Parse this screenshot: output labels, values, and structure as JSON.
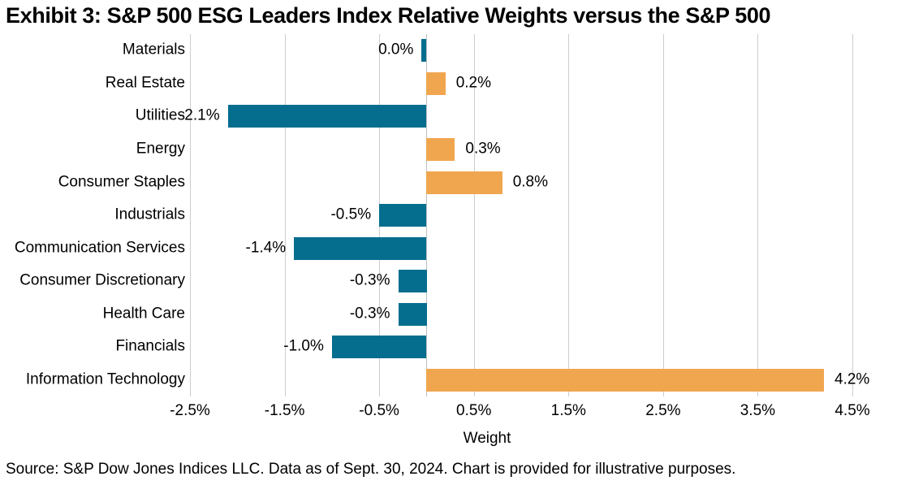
{
  "title": "Exhibit 3: S&P 500 ESG Leaders Index Relative Weights versus the S&P 500",
  "source": "Source: S&P Dow Jones Indices LLC. Data as of Sept. 30, 2024. Chart is provided for illustrative purposes.",
  "chart_data": {
    "type": "bar",
    "orientation": "horizontal",
    "title": "Exhibit 3: S&P 500 ESG Leaders Index Relative Weights versus the S&P 500",
    "categories": [
      "Materials",
      "Real Estate",
      "Utilities",
      "Energy",
      "Consumer Staples",
      "Industrials",
      "Communication Services",
      "Consumer Discretionary",
      "Health Care",
      "Financials",
      "Information Technology"
    ],
    "values": [
      0.0,
      0.2,
      -2.1,
      0.3,
      0.8,
      -0.5,
      -1.4,
      -0.3,
      -0.3,
      -1.0,
      4.2
    ],
    "data_labels": [
      "0.0%",
      "0.2%",
      "-2.1%",
      "0.3%",
      "0.8%",
      "-0.5%",
      "-1.4%",
      "-0.3%",
      "-0.3%",
      "-1.0%",
      "4.2%"
    ],
    "xlabel": "Weight",
    "ylabel": "",
    "xlim": [
      -2.5,
      4.5
    ],
    "x_ticks": [
      -2.5,
      -1.5,
      -0.5,
      0.5,
      1.5,
      2.5,
      3.5,
      4.5
    ],
    "x_tick_labels": [
      "-2.5%",
      "-1.5%",
      "-0.5%",
      "0.5%",
      "1.5%",
      "2.5%",
      "3.5%",
      "4.5%"
    ],
    "grid": "vertical",
    "legend": "none",
    "colors": {
      "positive_bar": "#F0A64F",
      "negative_bar": "#056E8E",
      "gridline": "#CDCDCD",
      "zero_axis": "#BCC0C2",
      "text": "#000000"
    }
  }
}
